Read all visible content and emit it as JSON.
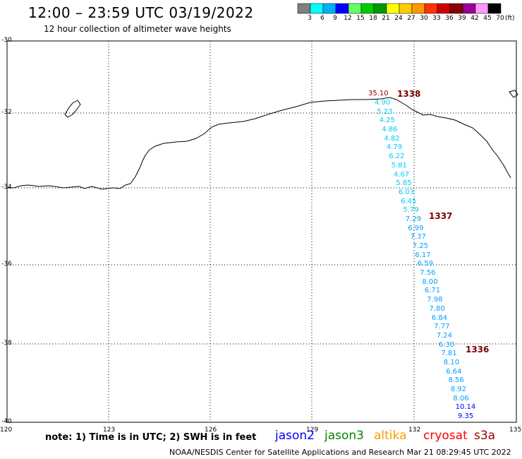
{
  "header": {
    "title": "12:00 – 23:59 UTC 03/19/2022",
    "subtitle": "12 hour collection of altimeter wave heights"
  },
  "colorbar": {
    "unit": "(ft)",
    "bins": [
      {
        "label": "3",
        "color": "#7f7f7f"
      },
      {
        "label": "6",
        "color": "#00ffff"
      },
      {
        "label": "9",
        "color": "#00b0ff"
      },
      {
        "label": "12",
        "color": "#0000ff"
      },
      {
        "label": "15",
        "color": "#66ff66"
      },
      {
        "label": "18",
        "color": "#00cc00"
      },
      {
        "label": "21",
        "color": "#009900"
      },
      {
        "label": "24",
        "color": "#ffff00"
      },
      {
        "label": "27",
        "color": "#ffcc00"
      },
      {
        "label": "30",
        "color": "#ff9900"
      },
      {
        "label": "33",
        "color": "#ff3300"
      },
      {
        "label": "36",
        "color": "#cc0000"
      },
      {
        "label": "39",
        "color": "#880000"
      },
      {
        "label": "42",
        "color": "#990099"
      },
      {
        "label": "45",
        "color": "#ff99ff"
      },
      {
        "label": "70",
        "color": "#000000"
      }
    ]
  },
  "map": {
    "lat_labels": [
      "-30",
      "-32",
      "-34",
      "-36",
      "-38",
      "-40"
    ],
    "lon_labels": [
      "120",
      "123",
      "126",
      "129",
      "132",
      "135"
    ],
    "track_observations": [
      {
        "value": "35.10",
        "color": "#8b0000"
      },
      {
        "value": "4.90",
        "color": "#00ccff"
      },
      {
        "value": "5.23",
        "color": "#00ccff"
      },
      {
        "value": "4.25",
        "color": "#00ccff"
      },
      {
        "value": "4.86",
        "color": "#00ccff"
      },
      {
        "value": "4.82",
        "color": "#00ccff"
      },
      {
        "value": "4.79",
        "color": "#00ccff"
      },
      {
        "value": "6.22",
        "color": "#00ccff"
      },
      {
        "value": "5.81",
        "color": "#00ccff"
      },
      {
        "value": "4.67",
        "color": "#00ccff"
      },
      {
        "value": "5.85",
        "color": "#00ccff"
      },
      {
        "value": "6.03",
        "color": "#00ccff"
      },
      {
        "value": "6.45",
        "color": "#00ccff"
      },
      {
        "value": "5.79",
        "color": "#00ccff"
      },
      {
        "value": "7.29",
        "color": "#00a0ff"
      },
      {
        "value": "6.99",
        "color": "#00a0ff"
      },
      {
        "value": "7.37",
        "color": "#00a0ff"
      },
      {
        "value": "7.25",
        "color": "#00a0ff"
      },
      {
        "value": "6.17",
        "color": "#00a0ff"
      },
      {
        "value": "6.59",
        "color": "#00a0ff"
      },
      {
        "value": "7.56",
        "color": "#00a0ff"
      },
      {
        "value": "8.00",
        "color": "#00a0ff"
      },
      {
        "value": "6.71",
        "color": "#00a0ff"
      },
      {
        "value": "7.98",
        "color": "#00a0ff"
      },
      {
        "value": "7.80",
        "color": "#00a0ff"
      },
      {
        "value": "6.84",
        "color": "#00a0ff"
      },
      {
        "value": "7.77",
        "color": "#00a0ff"
      },
      {
        "value": "7.24",
        "color": "#00a0ff"
      },
      {
        "value": "6.30",
        "color": "#00a0ff"
      },
      {
        "value": "7.81",
        "color": "#00a0ff"
      },
      {
        "value": "8.10",
        "color": "#00a0ff"
      },
      {
        "value": "6.64",
        "color": "#00a0ff"
      },
      {
        "value": "8.56",
        "color": "#00a0ff"
      },
      {
        "value": "8.92",
        "color": "#00a0ff"
      },
      {
        "value": "8.06",
        "color": "#00a0ff"
      },
      {
        "value": "10.14",
        "color": "#0000ff"
      },
      {
        "value": "9.35",
        "color": "#0000ff"
      }
    ],
    "time_labels": [
      "1338",
      "1337",
      "1336"
    ]
  },
  "footer": {
    "note": "note: 1) Time is in UTC; 2) SWH is in feet",
    "credit": "NOAA/NESDIS Center for Satellite Applications and Research     Mar 21 08:29:45 UTC 2022",
    "satellites": [
      {
        "name": "jason2",
        "color": "#0000ff"
      },
      {
        "name": "jason3",
        "color": "#008800"
      },
      {
        "name": "altika",
        "color": "#ff9900"
      },
      {
        "name": "cryosat",
        "color": "#ff0000"
      },
      {
        "name": "s3a",
        "color": "#990000"
      }
    ]
  }
}
